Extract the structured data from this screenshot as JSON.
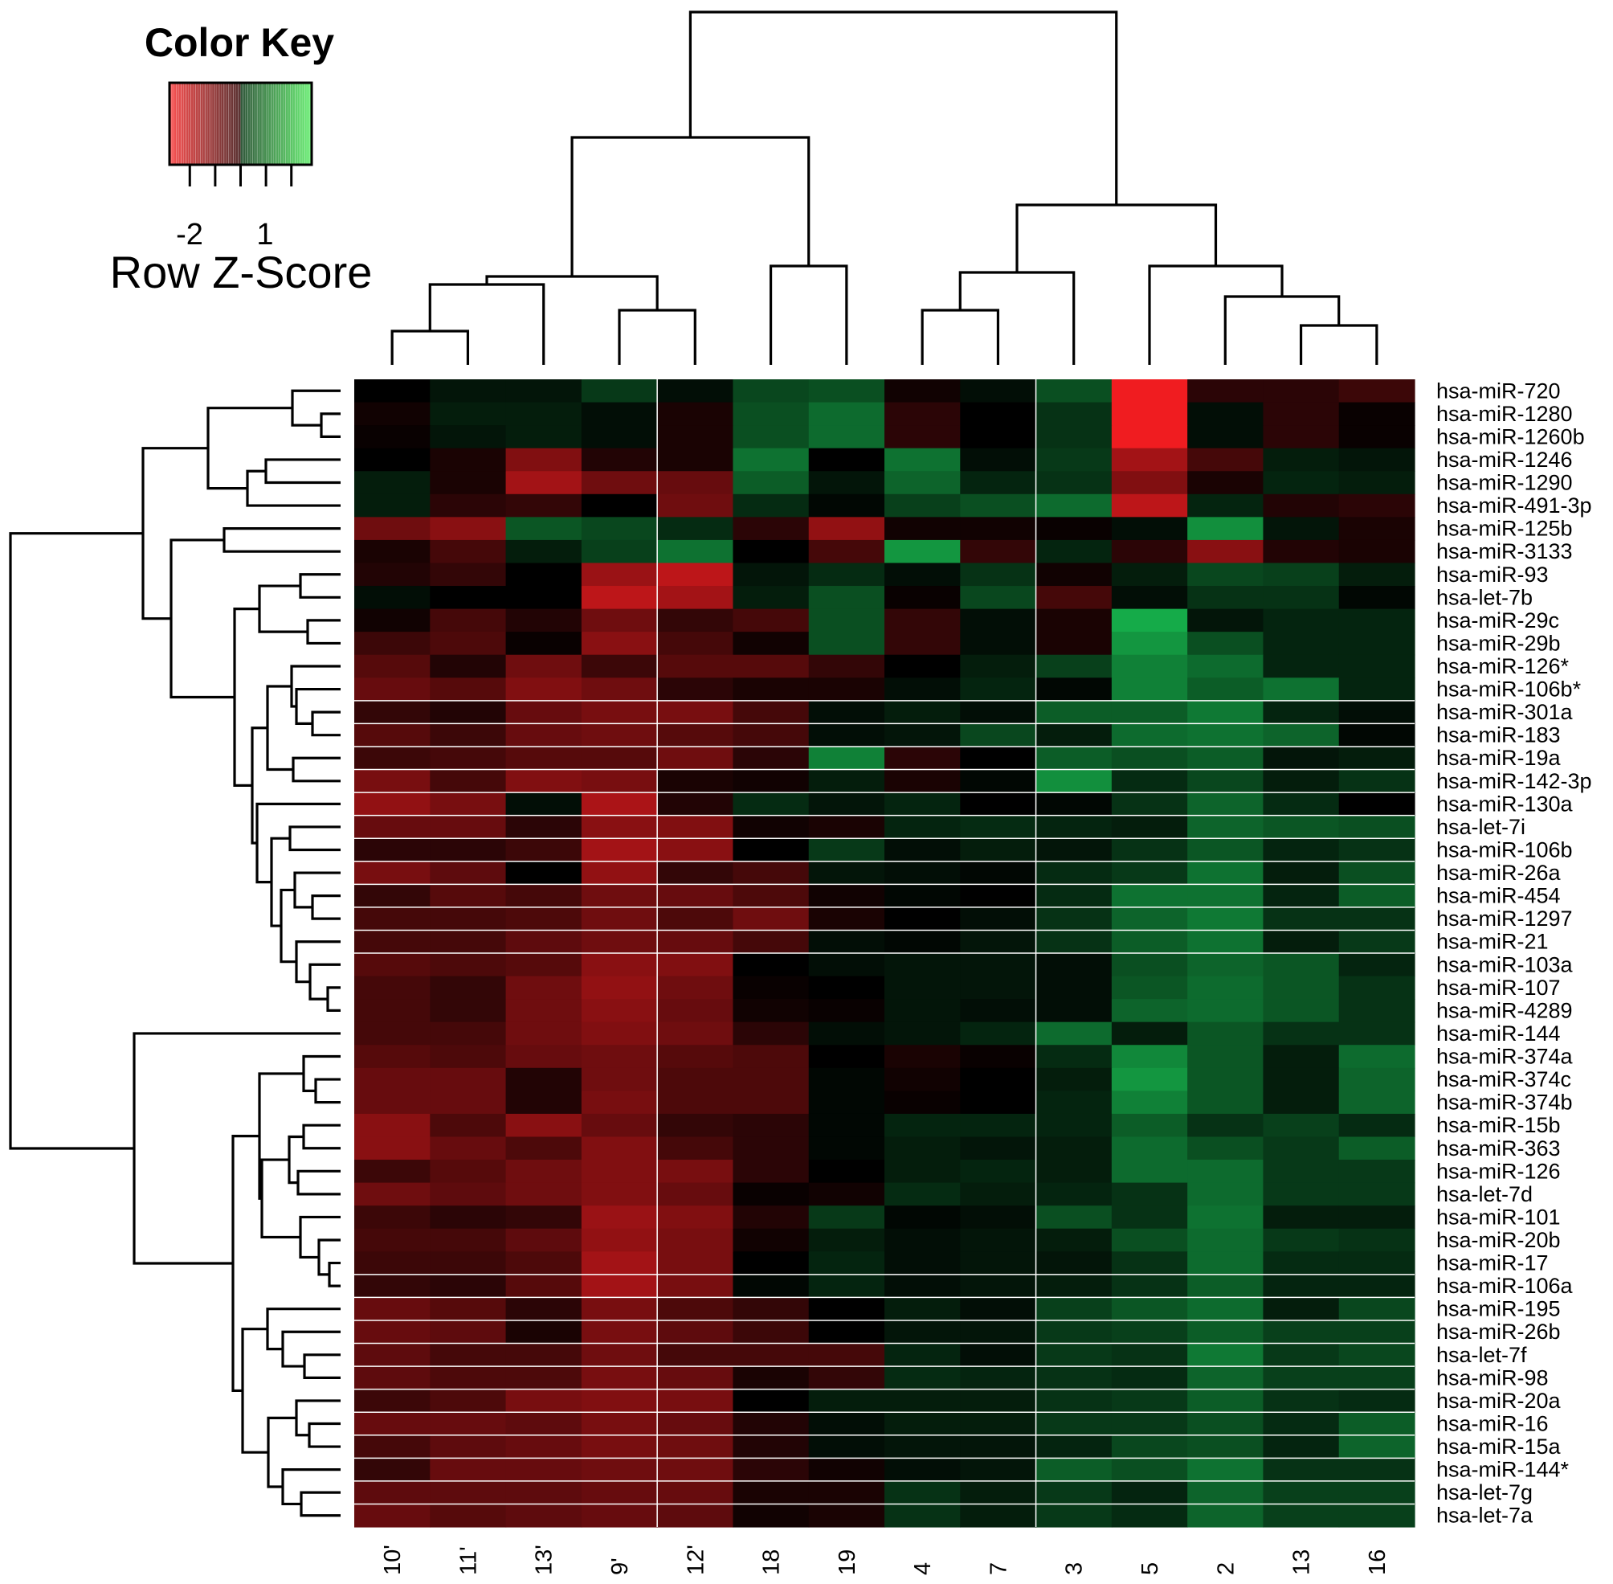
{
  "chart_data": {
    "type": "heatmap",
    "columns": [
      "10'",
      "11'",
      "13'",
      "9'",
      "12'",
      "18",
      "19",
      "4",
      "7",
      "3",
      "5",
      "2",
      "13",
      "16"
    ],
    "rows": [
      "hsa-miR-720",
      "hsa-miR-1280",
      "hsa-miR-1260b",
      "hsa-miR-1246",
      "hsa-miR-1290",
      "hsa-miR-491-3p",
      "hsa-miR-125b",
      "hsa-miR-3133",
      "hsa-miR-93",
      "hsa-let-7b",
      "hsa-miR-29c",
      "hsa-miR-29b",
      "hsa-miR-126*",
      "hsa-miR-106b*",
      "hsa-miR-301a",
      "hsa-miR-183",
      "hsa-miR-19a",
      "hsa-miR-142-3p",
      "hsa-miR-130a",
      "hsa-let-7i",
      "hsa-miR-106b",
      "hsa-miR-26a",
      "hsa-miR-454",
      "hsa-miR-1297",
      "hsa-miR-21",
      "hsa-miR-103a",
      "hsa-miR-107",
      "hsa-miR-4289",
      "hsa-miR-144",
      "hsa-miR-374a",
      "hsa-miR-374c",
      "hsa-miR-374b",
      "hsa-miR-15b",
      "hsa-miR-363",
      "hsa-miR-126",
      "hsa-let-7d",
      "hsa-miR-101",
      "hsa-miR-20b",
      "hsa-miR-17",
      "hsa-miR-106a",
      "hsa-miR-195",
      "hsa-miR-26b",
      "hsa-let-7f",
      "hsa-miR-98",
      "hsa-miR-20a",
      "hsa-miR-16",
      "hsa-miR-15a",
      "hsa-miR-144*",
      "hsa-let-7g",
      "hsa-let-7a"
    ],
    "values": [
      [
        0,
        0.3,
        0.3,
        0.8,
        0.2,
        1.0,
        1.1,
        -0.2,
        0.2,
        1.1,
        -2.8,
        -0.5,
        -0.5,
        -0.7
      ],
      [
        -0.2,
        0.4,
        0.4,
        0.2,
        -0.3,
        1.1,
        1.5,
        -0.5,
        0,
        0.7,
        -2.8,
        0.2,
        -0.5,
        -0.1
      ],
      [
        -0.1,
        0.3,
        0.4,
        0.2,
        -0.3,
        1.1,
        1.5,
        -0.5,
        0,
        0.7,
        -2.8,
        0.2,
        -0.5,
        -0.1
      ],
      [
        0,
        -0.3,
        -1.5,
        -0.4,
        -0.3,
        1.6,
        0,
        1.6,
        0.2,
        0.8,
        -1.9,
        -0.8,
        0.4,
        0.3
      ],
      [
        0.4,
        -0.3,
        -1.9,
        -1.3,
        -1.2,
        1.3,
        0.3,
        1.4,
        0.5,
        0.7,
        -1.5,
        -0.3,
        0.5,
        0.4
      ],
      [
        0.4,
        -0.5,
        -0.6,
        0,
        -1.3,
        0.6,
        0.1,
        0.9,
        1.1,
        1.5,
        -2.2,
        0.5,
        -0.4,
        -0.5
      ],
      [
        -1.3,
        -1.6,
        1.2,
        1.0,
        0.6,
        -0.5,
        -1.7,
        -0.2,
        -0.2,
        -0.1,
        0.2,
        2.0,
        0.3,
        -0.3
      ],
      [
        -0.3,
        -0.8,
        0.4,
        0.9,
        1.6,
        0,
        -0.8,
        2.1,
        -0.6,
        0.5,
        -0.5,
        -1.6,
        -0.4,
        -0.3
      ],
      [
        -0.4,
        -0.6,
        0,
        -1.8,
        -2.2,
        0.3,
        0.6,
        0.2,
        0.7,
        -0.2,
        0.4,
        1.0,
        0.9,
        0.4
      ],
      [
        0.2,
        0,
        0,
        -2.2,
        -1.9,
        0.4,
        1.1,
        -0.1,
        1.0,
        -0.8,
        0.2,
        0.7,
        0.7,
        0.1
      ],
      [
        -0.2,
        -0.8,
        -0.4,
        -1.3,
        -0.6,
        -0.8,
        1.1,
        -0.6,
        0.2,
        -0.3,
        2.4,
        0.3,
        0.5,
        0.5
      ],
      [
        -0.7,
        -0.9,
        -0.1,
        -1.6,
        -0.8,
        -0.2,
        1.1,
        -0.6,
        0.2,
        -0.3,
        2.1,
        1.1,
        0.5,
        0.5
      ],
      [
        -1.0,
        -0.4,
        -1.3,
        -0.7,
        -1.0,
        -1.0,
        -0.6,
        0,
        0.4,
        0.9,
        1.8,
        1.5,
        0.5,
        0.5
      ],
      [
        -1.2,
        -1.0,
        -1.5,
        -1.3,
        -0.5,
        -0.3,
        -0.3,
        0.2,
        0.5,
        0.1,
        1.8,
        1.3,
        1.6,
        0.5
      ],
      [
        -0.6,
        -0.4,
        -1.2,
        -1.4,
        -1.4,
        -0.8,
        0.2,
        0.4,
        0.2,
        1.3,
        1.3,
        1.7,
        0.5,
        0.2
      ],
      [
        -1.0,
        -0.7,
        -1.2,
        -1.3,
        -1.0,
        -0.8,
        0.2,
        0.3,
        1.0,
        0.4,
        1.5,
        1.6,
        1.4,
        0.1
      ],
      [
        -0.7,
        -0.8,
        -1.0,
        -1.0,
        -1.3,
        -0.5,
        1.8,
        -0.5,
        0,
        1.3,
        1.1,
        1.3,
        0.3,
        0.4
      ],
      [
        -1.4,
        -0.8,
        -1.5,
        -1.4,
        -0.3,
        -0.2,
        0.4,
        -0.3,
        0.1,
        2.0,
        0.6,
        1.0,
        0.4,
        0.7
      ],
      [
        -1.7,
        -1.4,
        0.2,
        -2.0,
        -0.4,
        0.6,
        0.3,
        0.5,
        0,
        0.1,
        0.7,
        1.4,
        0.6,
        0
      ],
      [
        -1.2,
        -1.2,
        -0.5,
        -1.6,
        -1.5,
        -0.2,
        -0.3,
        0.5,
        0.6,
        0.5,
        0.4,
        1.4,
        1.2,
        1.1
      ],
      [
        -0.5,
        -0.5,
        -0.7,
        -1.9,
        -1.6,
        0,
        0.8,
        0.2,
        0.4,
        0.3,
        0.7,
        1.2,
        0.5,
        0.7
      ],
      [
        -1.4,
        -1.1,
        0,
        -1.7,
        -0.6,
        -0.8,
        0.3,
        0.2,
        0.1,
        0.6,
        0.8,
        1.6,
        0.4,
        1.1
      ],
      [
        -0.6,
        -1.0,
        -0.8,
        -1.3,
        -1.2,
        -0.9,
        -0.2,
        0.1,
        0,
        0.6,
        1.6,
        1.6,
        0.5,
        1.3
      ],
      [
        -0.8,
        -0.8,
        -0.9,
        -1.3,
        -0.9,
        -1.3,
        -0.3,
        0,
        0.2,
        0.7,
        1.4,
        1.7,
        0.7,
        0.7
      ],
      [
        -0.8,
        -0.8,
        -1.1,
        -1.3,
        -1.2,
        -0.8,
        0.2,
        0.1,
        0.3,
        0.7,
        1.3,
        1.6,
        0.4,
        0.8
      ],
      [
        -1.0,
        -0.9,
        -1.0,
        -1.6,
        -1.5,
        0,
        0.2,
        0.3,
        0.3,
        0.2,
        1.1,
        1.4,
        1.2,
        0.5
      ],
      [
        -0.8,
        -0.6,
        -1.3,
        -1.7,
        -1.3,
        -0.1,
        0,
        0.3,
        0.3,
        0.2,
        1.2,
        1.5,
        1.2,
        0.7
      ],
      [
        -0.8,
        -0.6,
        -1.3,
        -1.6,
        -1.2,
        -0.2,
        -0.1,
        0.3,
        0.2,
        0.2,
        1.4,
        1.5,
        1.2,
        0.7
      ],
      [
        -0.8,
        -0.8,
        -1.3,
        -1.5,
        -1.3,
        -0.5,
        0.2,
        0.3,
        0.5,
        1.5,
        0.4,
        1.2,
        0.7,
        0.7
      ],
      [
        -1.0,
        -0.9,
        -1.2,
        -1.3,
        -1.0,
        -0.9,
        0,
        -0.3,
        -0.1,
        0.6,
        1.9,
        1.2,
        0.4,
        1.5
      ],
      [
        -1.2,
        -1.2,
        -0.4,
        -1.3,
        -0.9,
        -0.9,
        0.1,
        -0.2,
        0,
        0.4,
        2.1,
        1.2,
        0.4,
        1.4
      ],
      [
        -1.2,
        -1.2,
        -0.4,
        -1.4,
        -0.9,
        -0.9,
        0.1,
        -0.1,
        0,
        0.5,
        1.8,
        1.2,
        0.4,
        1.4
      ],
      [
        -1.6,
        -0.9,
        -1.6,
        -1.2,
        -0.6,
        -0.5,
        0.1,
        0.5,
        0.5,
        0.5,
        1.3,
        0.7,
        0.9,
        0.6
      ],
      [
        -1.6,
        -1.2,
        -0.9,
        -1.5,
        -0.8,
        -0.5,
        0.1,
        0.4,
        0.3,
        0.4,
        1.5,
        1.1,
        0.8,
        1.3
      ],
      [
        -0.7,
        -1.0,
        -1.3,
        -1.5,
        -1.4,
        -0.5,
        0,
        0.4,
        0.5,
        0.4,
        1.5,
        1.5,
        0.8,
        0.8
      ],
      [
        -1.3,
        -1.1,
        -1.3,
        -1.5,
        -1.2,
        -0.1,
        -0.2,
        0.6,
        0.4,
        0.5,
        0.7,
        1.5,
        0.8,
        0.8
      ],
      [
        -0.7,
        -0.5,
        -0.6,
        -1.8,
        -1.5,
        -0.4,
        0.8,
        0.1,
        0.2,
        1.1,
        0.7,
        1.6,
        0.4,
        0.4
      ],
      [
        -0.8,
        -0.8,
        -1.1,
        -1.7,
        -1.4,
        -0.2,
        0.4,
        0.2,
        0.3,
        0.4,
        1.1,
        1.5,
        0.8,
        0.7
      ],
      [
        -0.7,
        -0.7,
        -0.9,
        -1.9,
        -1.4,
        0,
        0.5,
        0.2,
        0.3,
        0.3,
        0.7,
        1.5,
        0.6,
        0.6
      ],
      [
        -0.6,
        -0.5,
        -1.0,
        -1.9,
        -1.4,
        0.1,
        0.5,
        0.2,
        0.3,
        0.4,
        0.7,
        1.3,
        0.5,
        0.5
      ],
      [
        -1.2,
        -1.0,
        -0.5,
        -1.4,
        -0.9,
        -0.6,
        0,
        0.4,
        0.2,
        0.9,
        1.2,
        1.5,
        0.4,
        1.0
      ],
      [
        -1.2,
        -1.1,
        -0.3,
        -1.4,
        -1.1,
        -0.7,
        0,
        0.3,
        0.3,
        0.8,
        0.9,
        1.3,
        0.9,
        0.9
      ],
      [
        -1.1,
        -0.8,
        -0.8,
        -1.3,
        -0.8,
        -0.8,
        -0.8,
        0.5,
        0.2,
        0.8,
        0.7,
        1.7,
        0.8,
        1.0
      ],
      [
        -1.1,
        -0.9,
        -0.9,
        -1.4,
        -1.2,
        -0.3,
        -0.6,
        0.6,
        0.5,
        0.7,
        0.6,
        1.4,
        0.9,
        0.9
      ],
      [
        -0.7,
        -0.9,
        -1.4,
        -1.5,
        -1.4,
        0,
        0.4,
        0.4,
        0.4,
        0.7,
        0.8,
        1.3,
        0.7,
        0.6
      ],
      [
        -1.2,
        -1.2,
        -1.1,
        -1.4,
        -1.2,
        -0.4,
        0.2,
        0.4,
        0.4,
        0.8,
        0.8,
        1.1,
        0.6,
        1.3
      ],
      [
        -0.8,
        -1.1,
        -1.2,
        -1.4,
        -1.3,
        -0.4,
        0.2,
        0.3,
        0.3,
        0.5,
        1.0,
        1.1,
        0.5,
        1.4
      ],
      [
        -0.6,
        -1.2,
        -1.2,
        -1.3,
        -1.3,
        -0.5,
        -0.2,
        0.2,
        0.3,
        1.3,
        1.1,
        1.6,
        0.7,
        0.7
      ],
      [
        -1.1,
        -1.1,
        -1.1,
        -1.2,
        -1.2,
        -0.3,
        -0.3,
        0.7,
        0.4,
        0.8,
        0.5,
        1.4,
        0.9,
        0.9
      ],
      [
        -1.2,
        -1.0,
        -1.1,
        -1.2,
        -1.1,
        -0.2,
        -0.3,
        0.7,
        0.4,
        0.8,
        0.6,
        1.4,
        0.9,
        0.9
      ]
    ],
    "color_key": {
      "title": "Color Key",
      "xlabel": "Row Z-Score",
      "tick_labels": [
        "-2",
        "1"
      ],
      "range": [
        -2.8,
        2.8
      ],
      "low_color": "#e8262a",
      "mid_color": "#000000",
      "high_color": "#17c45a"
    },
    "row_dendrogram": true,
    "column_dendrogram": true,
    "legend_position": "top-left"
  }
}
